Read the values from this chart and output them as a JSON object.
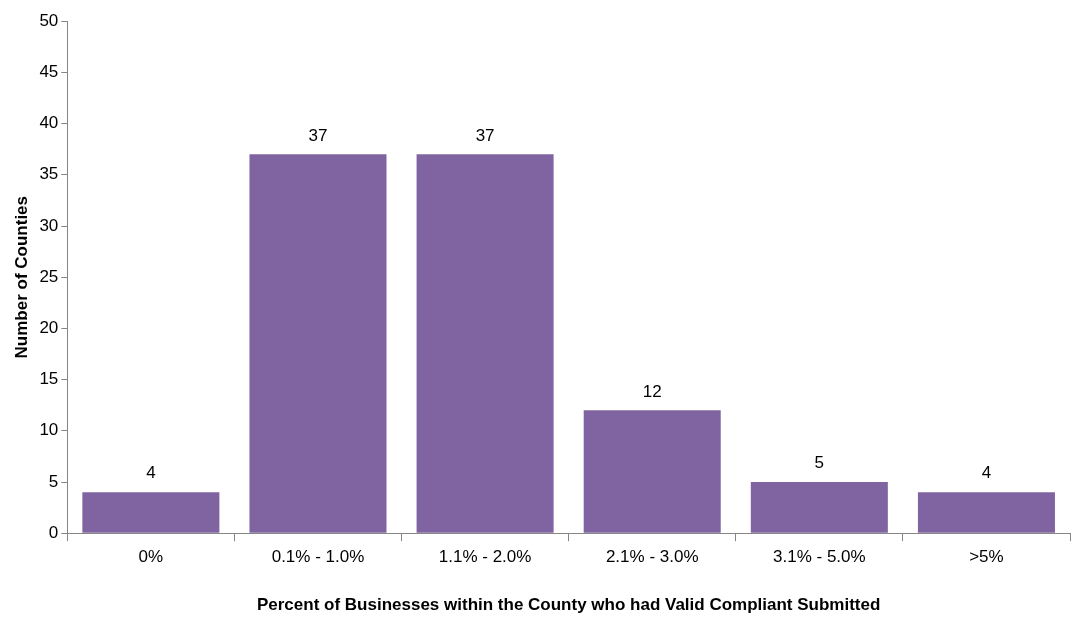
{
  "chart_data": {
    "type": "bar",
    "xlabel": "Percent of Businesses within the County who had Valid Compliant Submitted",
    "ylabel": "Number of Counties",
    "categories": [
      "0%",
      "0.1% - 1.0%",
      "1.1% - 2.0%",
      "2.1% - 3.0%",
      "3.1% - 5.0%",
      ">5%"
    ],
    "values": [
      4,
      37,
      37,
      12,
      5,
      4
    ],
    "color": "#8064a2",
    "ylim": [
      0,
      50
    ],
    "yticks": [
      0,
      5,
      10,
      15,
      20,
      25,
      30,
      35,
      40,
      45,
      50
    ],
    "grid": false,
    "data_labels": true,
    "legend": false
  }
}
